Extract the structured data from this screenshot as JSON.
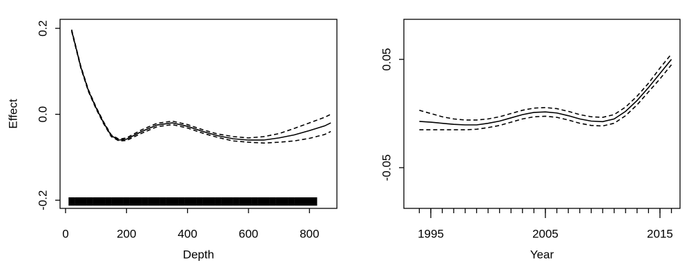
{
  "chart_data": [
    {
      "type": "line",
      "xlabel": "Depth",
      "ylabel": "Effect",
      "x": [
        20,
        50,
        75,
        100,
        125,
        150,
        175,
        200,
        250,
        300,
        350,
        400,
        450,
        500,
        550,
        600,
        650,
        700,
        750,
        800,
        850,
        870
      ],
      "series": [
        {
          "color": "#000000",
          "style": "solid",
          "values": [
            0.195,
            0.11,
            0.055,
            0.015,
            -0.02,
            -0.05,
            -0.06,
            -0.058,
            -0.04,
            -0.025,
            -0.02,
            -0.028,
            -0.04,
            -0.05,
            -0.057,
            -0.06,
            -0.06,
            -0.055,
            -0.048,
            -0.038,
            -0.027,
            -0.02
          ]
        },
        {
          "color": "#000000",
          "style": "dashed",
          "values": [
            0.197,
            0.112,
            0.057,
            0.017,
            -0.018,
            -0.048,
            -0.058,
            -0.055,
            -0.036,
            -0.021,
            -0.016,
            -0.024,
            -0.036,
            -0.046,
            -0.052,
            -0.055,
            -0.052,
            -0.045,
            -0.033,
            -0.02,
            -0.007,
            0.0
          ]
        },
        {
          "color": "#000000",
          "style": "dashed",
          "values": [
            0.193,
            0.108,
            0.053,
            0.013,
            -0.022,
            -0.052,
            -0.062,
            -0.061,
            -0.044,
            -0.029,
            -0.024,
            -0.032,
            -0.044,
            -0.054,
            -0.062,
            -0.065,
            -0.067,
            -0.065,
            -0.062,
            -0.056,
            -0.047,
            -0.04
          ]
        }
      ],
      "rug": [
        20,
        40,
        60,
        80,
        100,
        120,
        140,
        160,
        180,
        200,
        220,
        240,
        260,
        280,
        300,
        320,
        340,
        360,
        380,
        400,
        420,
        440,
        460,
        480,
        500,
        520,
        540,
        560,
        580,
        600,
        620,
        640,
        660,
        680,
        700,
        720,
        740,
        760,
        780,
        795,
        805,
        815
      ],
      "xlim": [
        -18,
        890
      ],
      "xticks": [
        0,
        200,
        400,
        600,
        800
      ],
      "ylim": [
        -0.219,
        0.221
      ],
      "yticks": [
        -0.2,
        {
          "value": 0,
          "label": "0.0"
        },
        0.2
      ]
    },
    {
      "type": "line",
      "xlabel": "Year",
      "x": [
        1994,
        1995,
        1996,
        1997,
        1998,
        1999,
        2000,
        2001,
        2002,
        2003,
        2004,
        2005,
        2006,
        2007,
        2008,
        2009,
        2010,
        2011,
        2012,
        2013,
        2014,
        2015,
        2016
      ],
      "series": [
        {
          "color": "#000000",
          "style": "solid",
          "values": [
            -0.0073,
            -0.008,
            -0.009,
            -0.01,
            -0.0105,
            -0.0105,
            -0.009,
            -0.007,
            -0.004,
            -0.001,
            0.001,
            0.0015,
            0.0005,
            -0.002,
            -0.005,
            -0.007,
            -0.0075,
            -0.005,
            0.002,
            0.012,
            0.024,
            0.037,
            0.05
          ]
        },
        {
          "color": "#000000",
          "style": "dashed",
          "values": [
            0.003,
            0.0,
            -0.003,
            -0.005,
            -0.006,
            -0.006,
            -0.005,
            -0.003,
            0.0,
            0.003,
            0.005,
            0.0055,
            0.0045,
            0.002,
            -0.001,
            -0.003,
            -0.0035,
            -0.001,
            0.006,
            0.016,
            0.028,
            0.042,
            0.055
          ]
        },
        {
          "color": "#000000",
          "style": "dashed",
          "values": [
            -0.015,
            -0.015,
            -0.015,
            -0.015,
            -0.015,
            -0.0145,
            -0.013,
            -0.011,
            -0.008,
            -0.005,
            -0.003,
            -0.0025,
            -0.0035,
            -0.006,
            -0.009,
            -0.011,
            -0.0115,
            -0.009,
            -0.002,
            0.008,
            0.02,
            0.032,
            0.045
          ]
        }
      ],
      "xlim": [
        1992.65,
        2016.75
      ],
      "xticks": [
        1995,
        2005,
        2015
      ],
      "xminor_ticks": [
        1994,
        1995,
        1996,
        1997,
        1998,
        1999,
        2000,
        2001,
        2002,
        2003,
        2004,
        2005,
        2006,
        2007,
        2008,
        2009,
        2010,
        2011,
        2012,
        2013,
        2014,
        2015,
        2016
      ],
      "ylim": [
        -0.0876,
        0.087
      ],
      "yticks": [
        -0.05,
        0.05
      ]
    }
  ]
}
